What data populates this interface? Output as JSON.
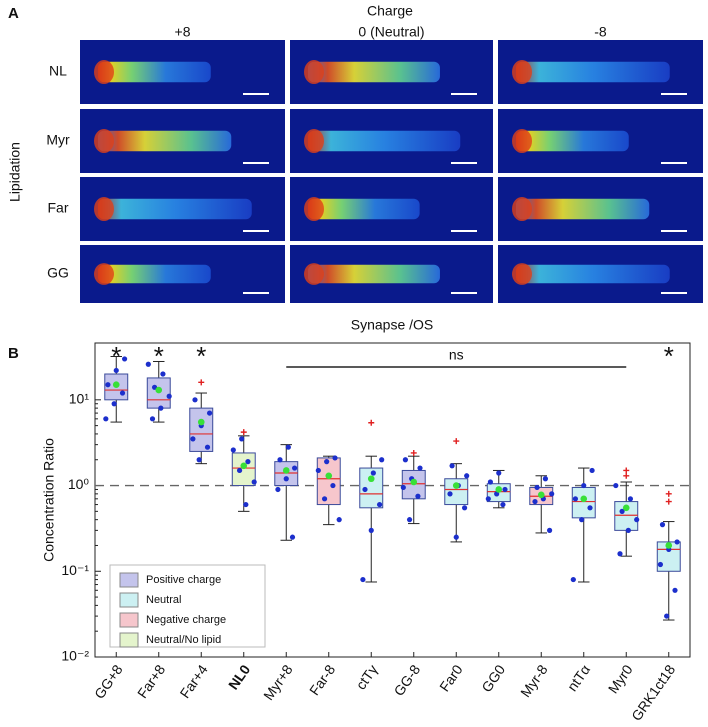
{
  "panel_a": {
    "label": "A",
    "col_header": "Charge",
    "columns": [
      "+8",
      "0 (Neutral)",
      "-8"
    ],
    "row_header": "Lipidation",
    "rows": [
      "NL",
      "Myr",
      "Far",
      "GG"
    ]
  },
  "chart_data": {
    "type": "box",
    "panel_label": "B",
    "title": "Synapse /OS",
    "y_label": "Concentration Ratio",
    "log_scale": true,
    "ylim": [
      0.01,
      46
    ],
    "yticks": [
      {
        "value": 0.01,
        "label": "10⁻²"
      },
      {
        "value": 0.1,
        "label": "10⁻¹"
      },
      {
        "value": 1,
        "label": "10⁰"
      },
      {
        "value": 10,
        "label": "10¹"
      }
    ],
    "reference_line": 1,
    "categories": [
      "GG+8",
      "Far+8",
      "Far+4",
      "NL0",
      "Myr+8",
      "Far-8",
      "ctTγ",
      "GG-8",
      "Far0",
      "GG0",
      "Myr-8",
      "ntTα",
      "Myr0",
      "GRK1ct18"
    ],
    "bold_category": 3,
    "groups": [
      0,
      0,
      0,
      3,
      0,
      2,
      1,
      0,
      1,
      1,
      2,
      1,
      1,
      1
    ],
    "legend": [
      {
        "name": "Positive charge",
        "color": "#c4c4ec"
      },
      {
        "name": "Neutral",
        "color": "#ccf0f2"
      },
      {
        "name": "Negative charge",
        "color": "#f6c6cc"
      },
      {
        "name": "Neutral/No lipid",
        "color": "#e4f4cc"
      }
    ],
    "whisker_low": [
      5.5,
      5.5,
      1.8,
      0.5,
      0.23,
      0.35,
      0.075,
      0.36,
      0.22,
      0.55,
      0.28,
      0.075,
      0.15,
      0.027
    ],
    "q1": [
      10,
      8,
      2.5,
      1.0,
      1.0,
      0.6,
      0.55,
      0.7,
      0.6,
      0.65,
      0.6,
      0.42,
      0.3,
      0.1
    ],
    "median": [
      13,
      10,
      4,
      1.6,
      1.4,
      1.2,
      0.8,
      1.05,
      0.9,
      0.85,
      0.75,
      0.65,
      0.45,
      0.18
    ],
    "q3": [
      20,
      18,
      8,
      2.4,
      1.9,
      2.1,
      1.6,
      1.5,
      1.2,
      1.05,
      0.95,
      0.95,
      0.65,
      0.22
    ],
    "whisker_high": [
      32,
      28,
      12,
      3.8,
      3.0,
      2.2,
      2.2,
      2.2,
      1.8,
      1.5,
      1.3,
      1.6,
      1.1,
      0.38
    ],
    "mean": [
      15,
      13,
      5.5,
      1.7,
      1.5,
      1.3,
      1.2,
      1.1,
      1.0,
      0.9,
      0.78,
      0.7,
      0.55,
      0.2
    ],
    "outliers": [
      [],
      [],
      [
        16
      ],
      [
        4.2
      ],
      [],
      [],
      [
        5.4
      ],
      [
        2.4
      ],
      [
        3.3
      ],
      [],
      [],
      [],
      [
        1.3,
        1.5
      ],
      [
        0.65,
        0.8
      ]
    ],
    "points": [
      [
        6,
        9,
        12,
        15,
        22,
        30
      ],
      [
        6,
        8,
        11,
        14,
        20,
        26
      ],
      [
        2,
        2.8,
        3.5,
        5,
        7,
        10
      ],
      [
        0.6,
        1.1,
        1.5,
        1.9,
        2.6,
        3.5
      ],
      [
        0.25,
        0.9,
        1.2,
        1.6,
        2.0,
        2.8
      ],
      [
        0.4,
        0.7,
        1.0,
        1.5,
        1.9,
        2.1
      ],
      [
        0.08,
        0.3,
        0.6,
        0.9,
        1.4,
        2.0
      ],
      [
        0.4,
        0.75,
        0.95,
        1.2,
        1.6,
        2.0
      ],
      [
        0.25,
        0.55,
        0.8,
        1.0,
        1.3,
        1.7
      ],
      [
        0.6,
        0.7,
        0.8,
        0.9,
        1.1,
        1.4
      ],
      [
        0.3,
        0.65,
        0.7,
        0.8,
        0.95,
        1.2
      ],
      [
        0.08,
        0.4,
        0.55,
        0.7,
        1.0,
        1.5
      ],
      [
        0.16,
        0.3,
        0.4,
        0.5,
        0.7,
        1.0
      ],
      [
        0.03,
        0.06,
        0.12,
        0.18,
        0.22,
        0.35
      ]
    ],
    "annotations": [
      {
        "label": "*",
        "category": 0
      },
      {
        "label": "*",
        "category": 1
      },
      {
        "label": "*",
        "category": 2
      },
      {
        "label": "*",
        "category": 13
      }
    ],
    "bracket": {
      "label": "ns",
      "from": 4,
      "to": 12
    }
  }
}
